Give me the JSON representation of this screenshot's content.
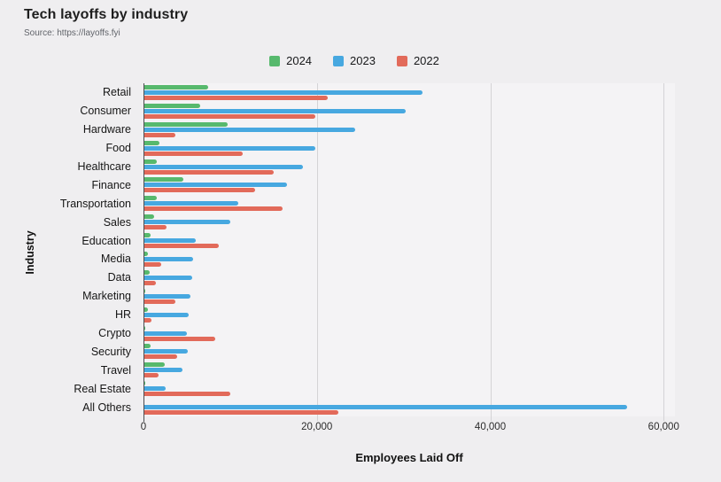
{
  "header": {
    "title": "Tech layoffs by industry",
    "source": "Source: https://layoffs.fyi"
  },
  "chart_data": {
    "type": "bar",
    "orientation": "horizontal",
    "title": "Tech layoffs by industry",
    "source": "Source: https://layoffs.fyi",
    "xlabel": "Employees Laid Off",
    "ylabel": "Industry",
    "xlim": [
      0,
      61300
    ],
    "xticks": [
      0,
      20000,
      40000,
      60000
    ],
    "xtick_labels": [
      "0",
      "20,000",
      "40,000",
      "60,000"
    ],
    "grid": true,
    "legend_position": "top",
    "axis_color": "#4c4c50",
    "gridline_color": "#d4d3d6",
    "categories": [
      "Retail",
      "Consumer",
      "Hardware",
      "Food",
      "Healthcare",
      "Finance",
      "Transportation",
      "Sales",
      "Education",
      "Media",
      "Data",
      "Marketing",
      "HR",
      "Crypto",
      "Security",
      "Travel",
      "Real Estate",
      "All Others"
    ],
    "series": [
      {
        "name": "2024",
        "color": "#57b96d",
        "values": [
          7500,
          6500,
          9700,
          1800,
          1500,
          4600,
          1500,
          1200,
          800,
          500,
          700,
          200,
          500,
          200,
          800,
          2500,
          200,
          0
        ]
      },
      {
        "name": "2023",
        "color": "#47a8e0",
        "values": [
          32200,
          30200,
          24400,
          19800,
          18400,
          16600,
          10900,
          10000,
          6000,
          5700,
          5600,
          5400,
          5200,
          5000,
          5100,
          4500,
          2600,
          55800
        ]
      },
      {
        "name": "2022",
        "color": "#e26a5a",
        "values": [
          21200,
          19800,
          3700,
          11400,
          15000,
          12900,
          16000,
          2700,
          8700,
          2000,
          1400,
          3700,
          900,
          8300,
          3900,
          1700,
          10000,
          22500
        ]
      }
    ]
  }
}
